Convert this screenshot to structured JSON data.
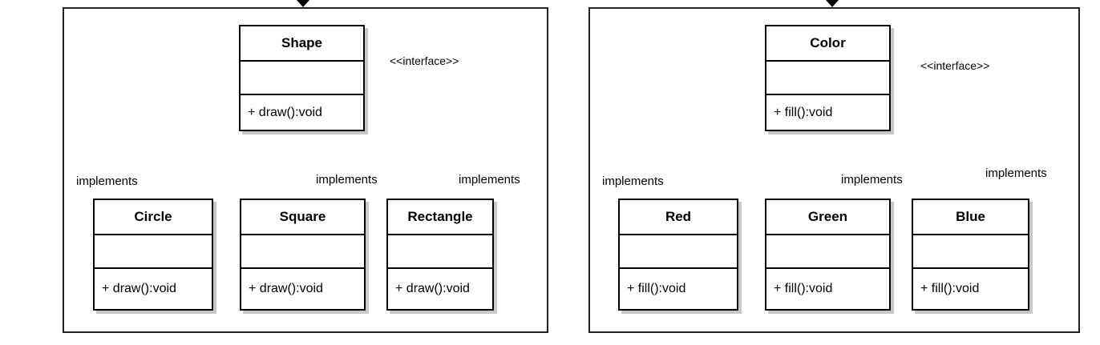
{
  "diagrams": [
    {
      "interface": {
        "name": "Shape",
        "stereotype": "<<interface>>",
        "operation": "+ draw():void"
      },
      "implementations": [
        {
          "name": "Circle",
          "operation": "+ draw():void",
          "relation": "implements"
        },
        {
          "name": "Square",
          "operation": "+ draw():void",
          "relation": "implements"
        },
        {
          "name": "Rectangle",
          "operation": "+ draw():void",
          "relation": "implements"
        }
      ]
    },
    {
      "interface": {
        "name": "Color",
        "stereotype": "<<interface>>",
        "operation": "+ fill():void"
      },
      "implementations": [
        {
          "name": "Red",
          "operation": "+ fill():void",
          "relation": "implements"
        },
        {
          "name": "Green",
          "operation": "+ fill():void",
          "relation": "implements"
        },
        {
          "name": "Blue",
          "operation": "+ fill():void",
          "relation": "implements"
        }
      ]
    }
  ]
}
